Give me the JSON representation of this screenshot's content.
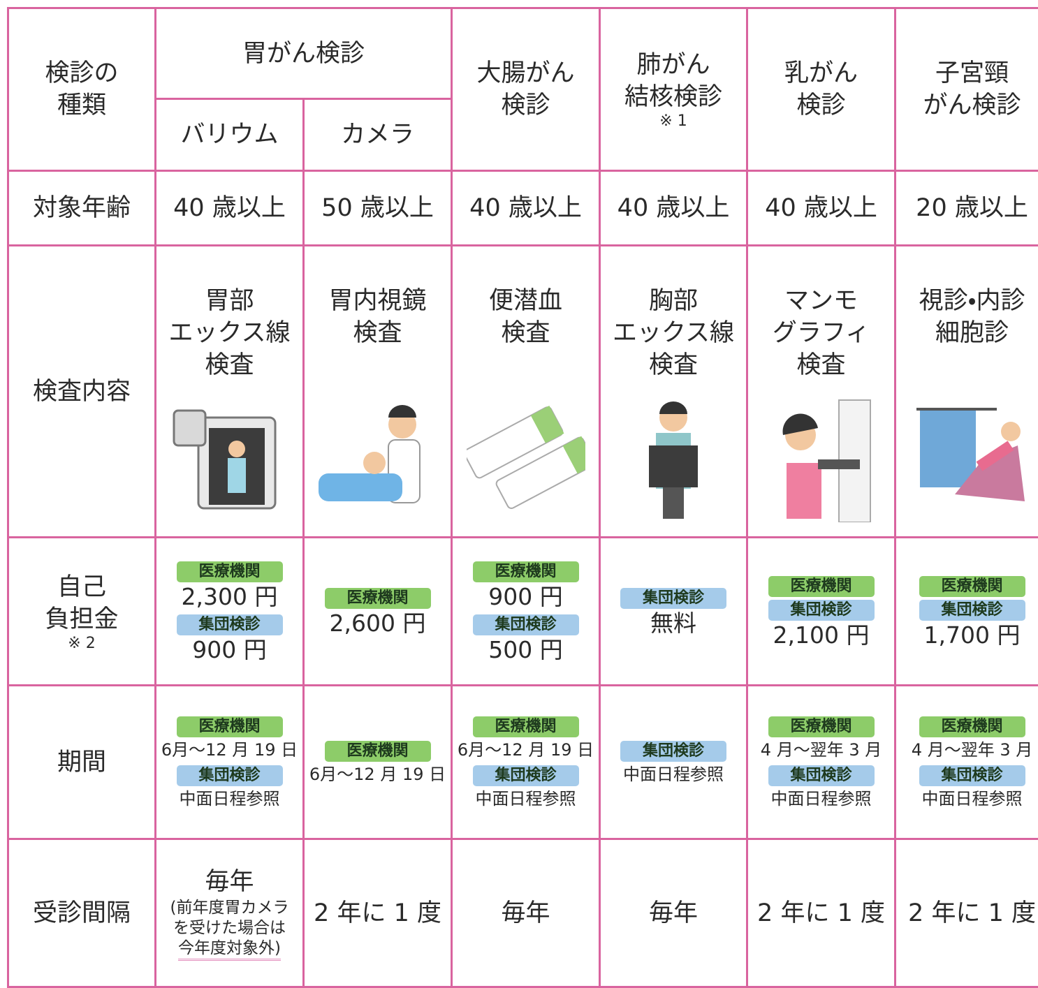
{
  "table": {
    "header": {
      "corner": [
        "検診の",
        "種類"
      ],
      "stomach": {
        "title": "胃がん検診",
        "subs": [
          "バリウム",
          "カメラ"
        ]
      },
      "others": [
        {
          "lines": [
            "大腸がん",
            "検診"
          ]
        },
        {
          "lines": [
            "肺がん",
            "結核検診"
          ],
          "note": "※ 1"
        },
        {
          "lines": [
            "乳がん",
            "検診"
          ]
        },
        {
          "lines": [
            "子宮頸",
            "がん検診"
          ]
        }
      ]
    },
    "age": {
      "label": "対象年齢",
      "values": [
        "40 歳以上",
        "50 歳以上",
        "40 歳以上",
        "40 歳以上",
        "40 歳以上",
        "20 歳以上"
      ]
    },
    "content": {
      "label": "検査内容",
      "values": [
        [
          "胃部",
          "エックス線",
          "検査"
        ],
        [
          "胃内視鏡",
          "検査"
        ],
        [
          "便潜血",
          "検査"
        ],
        [
          "胸部",
          "エックス線",
          "検査"
        ],
        [
          "マンモ",
          "グラフィ",
          "検査"
        ],
        [
          "視診・内診",
          "細胞診"
        ]
      ]
    },
    "cost": {
      "label": [
        "自己",
        "負担金"
      ],
      "note": "※ 2",
      "cells": [
        [
          {
            "badge": "医療機関",
            "color": "#8dcc69",
            "text": "2,300 円"
          },
          {
            "badge": "集団検診",
            "color": "#a5cbea",
            "text": "900 円"
          }
        ],
        [
          {
            "badge": "医療機関",
            "color": "#8dcc69",
            "text": "2,600 円"
          }
        ],
        [
          {
            "badge": "医療機関",
            "color": "#8dcc69",
            "text": "900 円"
          },
          {
            "badge": "集団検診",
            "color": "#a5cbea",
            "text": "500 円"
          }
        ],
        [
          {
            "badge": "集団検診",
            "color": "#a5cbea",
            "text": "無料"
          }
        ],
        [
          {
            "badge": "医療機関",
            "color": "#8dcc69"
          },
          {
            "badge": "集団検診",
            "color": "#a5cbea",
            "text": "2,100 円"
          }
        ],
        [
          {
            "badge": "医療機関",
            "color": "#8dcc69"
          },
          {
            "badge": "集団検診",
            "color": "#a5cbea",
            "text": "1,700 円"
          }
        ]
      ]
    },
    "period": {
      "label": "期間",
      "cells": [
        [
          {
            "badge": "医療機関",
            "color": "#8dcc69",
            "text": "6月～12 月 19 日"
          },
          {
            "badge": "集団検診",
            "color": "#a5cbea",
            "text": "中面日程参照"
          }
        ],
        [
          {
            "badge": "医療機関",
            "color": "#8dcc69",
            "text": "6月～12 月 19 日"
          }
        ],
        [
          {
            "badge": "医療機関",
            "color": "#8dcc69",
            "text": "6月～12 月 19 日"
          },
          {
            "badge": "集団検診",
            "color": "#a5cbea",
            "text": "中面日程参照"
          }
        ],
        [
          {
            "badge": "集団検診",
            "color": "#a5cbea",
            "text": "中面日程参照"
          }
        ],
        [
          {
            "badge": "医療機関",
            "color": "#8dcc69",
            "text": "4 月～翌年 3 月"
          },
          {
            "badge": "集団検診",
            "color": "#a5cbea",
            "text": "中面日程参照"
          }
        ],
        [
          {
            "badge": "医療機関",
            "color": "#8dcc69",
            "text": "4 月～翌年 3 月"
          },
          {
            "badge": "集団検診",
            "color": "#a5cbea",
            "text": "中面日程参照"
          }
        ]
      ]
    },
    "interval": {
      "label": "受診間隔",
      "cells": [
        {
          "main": "毎年",
          "note": [
            "(前年度胃カメラ",
            "を受けた場合は",
            "今年度対象外)"
          ]
        },
        {
          "main": "2 年に 1 度"
        },
        {
          "main": "毎年"
        },
        {
          "main": "毎年"
        },
        {
          "main": "2 年に 1 度"
        },
        {
          "main": "2 年に 1 度"
        }
      ]
    }
  }
}
